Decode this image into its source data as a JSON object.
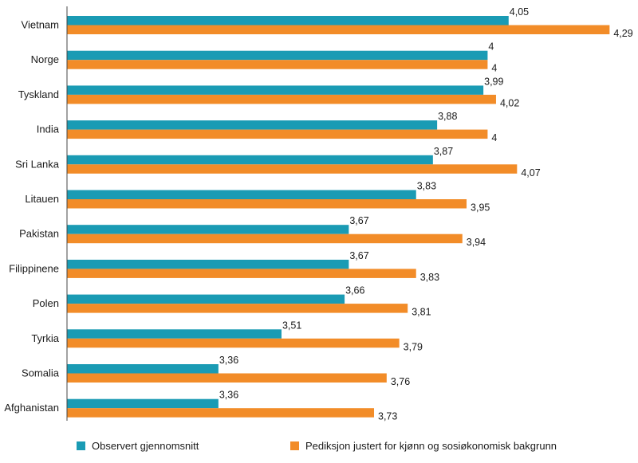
{
  "chart_data": {
    "type": "bar",
    "orientation": "horizontal",
    "categories": [
      "Vietnam",
      "Norge",
      "Tyskland",
      "India",
      "Sri Lanka",
      "Litauen",
      "Pakistan",
      "Filippinene",
      "Polen",
      "Tyrkia",
      "Somalia",
      "Afghanistan"
    ],
    "series": [
      {
        "name": "Observert gjennomsnitt",
        "color": "#1a9bb4",
        "values": [
          4.05,
          4,
          3.99,
          3.88,
          3.87,
          3.83,
          3.67,
          3.67,
          3.66,
          3.51,
          3.36,
          3.36
        ],
        "labels": [
          "4,05",
          "4",
          "3,99",
          "3,88",
          "3,87",
          "3,83",
          "3,67",
          "3,67",
          "3,66",
          "3,51",
          "3,36",
          "3,36"
        ]
      },
      {
        "name": "Pediksjon justert for kjønn og sosiøkonomisk bakgrunn",
        "color": "#f28c28",
        "values": [
          4.29,
          4,
          4.02,
          4,
          4.07,
          3.95,
          3.94,
          3.83,
          3.81,
          3.79,
          3.76,
          3.73
        ],
        "labels": [
          "4,29",
          "4",
          "4,02",
          "4",
          "4,07",
          "3,95",
          "3,94",
          "3,83",
          "3,81",
          "3,79",
          "3,76",
          "3,73"
        ]
      }
    ],
    "xlim": [
      3.0,
      4.35
    ],
    "grid": false,
    "legend_position": "bottom"
  }
}
